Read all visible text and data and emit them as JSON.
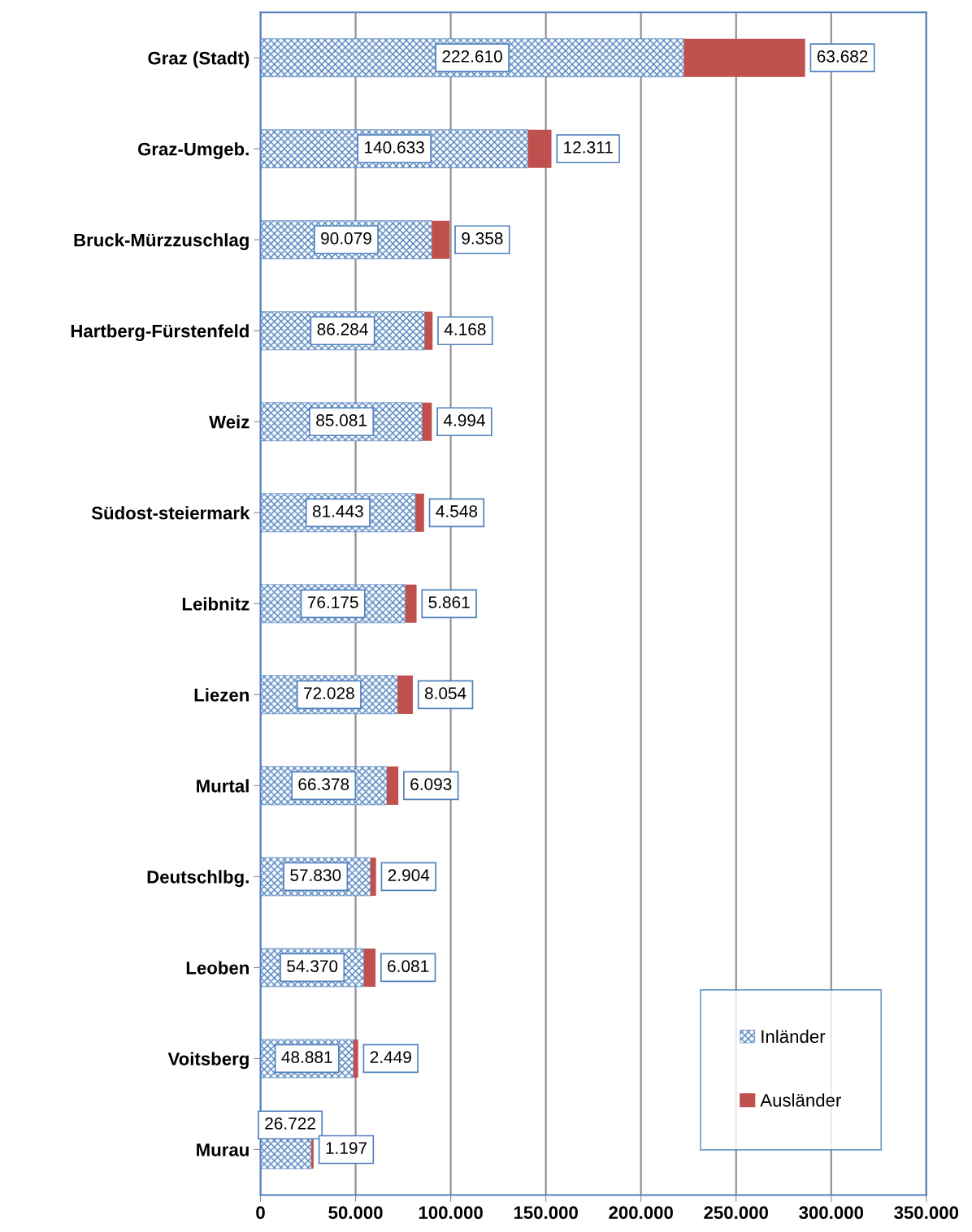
{
  "chart_data": {
    "type": "bar",
    "orientation": "horizontal",
    "stacked": true,
    "categories": [
      "Graz (Stadt)",
      "Graz-Umgeb.",
      "Bruck-Mürzzuschlag",
      "Hartberg-Fürstenfeld",
      "Weiz",
      "Südost-steiermark",
      "Leibnitz",
      "Liezen",
      "Murtal",
      "Deutschlbg.",
      "Leoben",
      "Voitsberg",
      "Murau"
    ],
    "series": [
      {
        "name": "Inländer",
        "color": "#4f81bd",
        "values": [
          222610,
          140633,
          90079,
          86284,
          85081,
          81443,
          76175,
          72028,
          66378,
          57830,
          54370,
          48881,
          26722
        ],
        "value_labels": [
          "222.610",
          "140.633",
          "90.079",
          "86.284",
          "85.081",
          "81.443",
          "76.175",
          "72.028",
          "66.378",
          "57.830",
          "54.370",
          "48.881",
          "26.722"
        ]
      },
      {
        "name": "Ausländer",
        "color": "#c0504d",
        "values": [
          63682,
          12311,
          9358,
          4168,
          4994,
          4548,
          5861,
          8054,
          6093,
          2904,
          6081,
          2449,
          1197
        ],
        "value_labels": [
          "63.682",
          "12.311",
          "9.358",
          "4.168",
          "4.994",
          "4.548",
          "5.861",
          "8.054",
          "6.093",
          "2.904",
          "6.081",
          "2.449",
          "1.197"
        ]
      }
    ],
    "xlim": [
      0,
      350000
    ],
    "xticks": [
      0,
      {
        "value": 50000,
        "label": "50.000"
      },
      {
        "value": 100000,
        "label": "100.000"
      },
      {
        "value": 150000,
        "label": "150.000"
      },
      {
        "value": 200000,
        "label": "200.000"
      },
      {
        "value": 250000,
        "label": "250.000"
      },
      {
        "value": 300000,
        "label": "300.000"
      },
      {
        "value": 350000,
        "label": "350.000"
      }
    ],
    "grid": "x",
    "legend": "bottom right"
  }
}
